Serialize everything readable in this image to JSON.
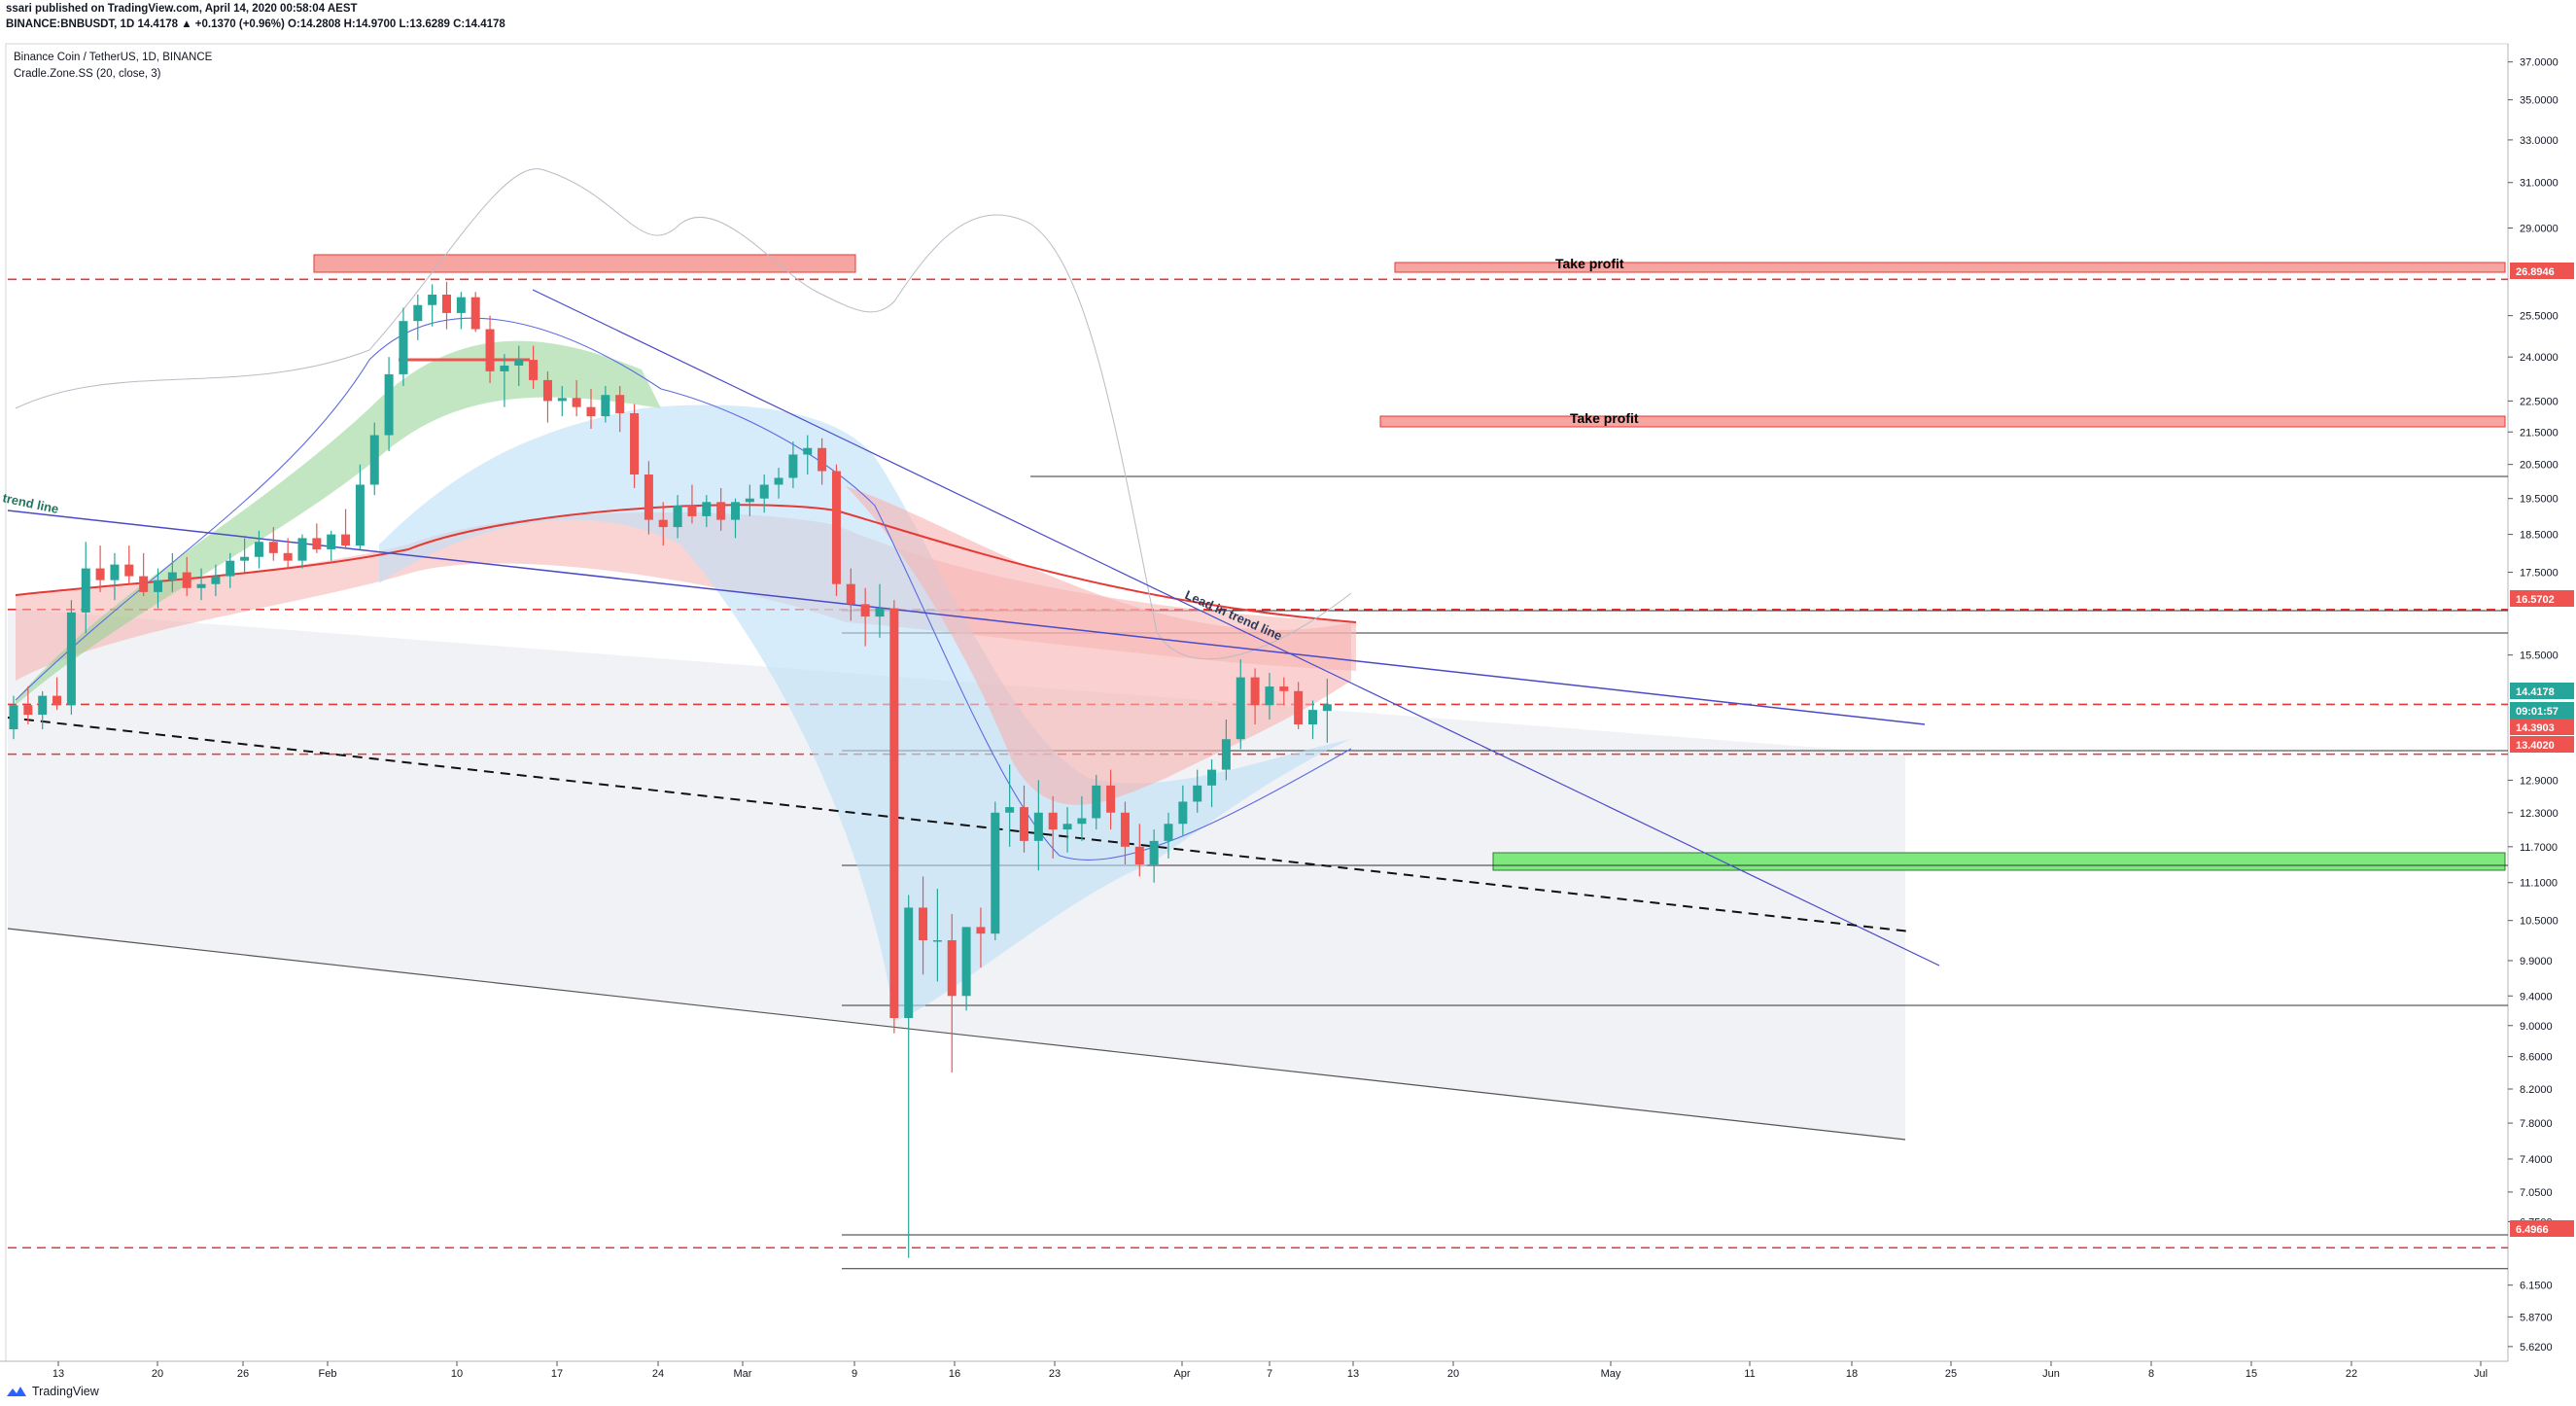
{
  "header": {
    "published_line": "ssari published on TradingView.com, April 14, 2020 00:58:04 AEST",
    "symbol_line": "BINANCE:BNBUSDT, 1D 14.4178 ▲ +0.1370 (+0.96%) O:14.2808 H:14.9700 L:13.6289 C:14.4178"
  },
  "legend": {
    "pair": "Binance Coin / TetherUS, 1D, BINANCE",
    "indicator": "Cradle.Zone.SS (20, close, 3)"
  },
  "footer": {
    "brand": "TradingView"
  },
  "colors": {
    "up": "#26a69a",
    "down": "#ef5350",
    "take_profit_fill": "#f7a5a1",
    "support_zone_fill": "#7ee87e",
    "trend_line": "#4a4ac8",
    "dashed_level": "#e53935"
  },
  "chart_data": {
    "type": "candlestick",
    "y_scale": "log",
    "y_tick_labels": [
      "37.0000",
      "35.0000",
      "33.0000",
      "31.0000",
      "29.0000",
      "25.5000",
      "24.0000",
      "22.5000",
      "21.5000",
      "20.5000",
      "19.5000",
      "18.5000",
      "17.5000",
      "15.5000",
      "12.9000",
      "12.3000",
      "11.7000",
      "11.1000",
      "10.5000",
      "9.9000",
      "9.4000",
      "9.0000",
      "8.6000",
      "8.2000",
      "7.8000",
      "7.4000",
      "7.0500",
      "6.7500",
      "6.1500",
      "5.8700",
      "5.6200"
    ],
    "x_tick_labels": [
      "13",
      "20",
      "26",
      "Feb",
      "10",
      "17",
      "24",
      "Mar",
      "9",
      "16",
      "23",
      "Apr",
      "7",
      "13",
      "20",
      "May",
      "11",
      "18",
      "25",
      "Jun",
      "8",
      "15",
      "22",
      "Jul"
    ],
    "price_labels": [
      {
        "text": "26.8946",
        "color": "#ef5350"
      },
      {
        "text": "16.5702",
        "color": "#ef5350"
      },
      {
        "text": "14.4178",
        "color": "#26a69a"
      },
      {
        "text": "09:01:57",
        "color": "#26a69a"
      },
      {
        "text": "14.3903",
        "color": "#ef5350"
      },
      {
        "text": "13.4020",
        "color": "#ef5350"
      },
      {
        "text": "6.4966",
        "color": "#ef5350"
      }
    ],
    "annotations": [
      {
        "text": "Take profit"
      },
      {
        "text": "Take profit"
      },
      {
        "text": "Lead in trend line"
      },
      {
        "text": "trend line"
      }
    ],
    "candles_ohlc": [
      [
        13.9,
        14.6,
        13.7,
        14.4
      ],
      [
        14.4,
        14.8,
        14.0,
        14.2
      ],
      [
        14.2,
        14.7,
        13.9,
        14.6
      ],
      [
        14.6,
        15.0,
        14.3,
        14.4
      ],
      [
        14.4,
        16.8,
        14.2,
        16.5
      ],
      [
        16.5,
        18.3,
        16.0,
        17.6
      ],
      [
        17.6,
        18.2,
        17.0,
        17.3
      ],
      [
        17.3,
        18.0,
        16.8,
        17.7
      ],
      [
        17.7,
        18.2,
        17.2,
        17.4
      ],
      [
        17.4,
        18.0,
        16.9,
        17.0
      ],
      [
        17.0,
        17.6,
        16.6,
        17.3
      ],
      [
        17.3,
        18.0,
        17.0,
        17.5
      ],
      [
        17.5,
        17.9,
        16.9,
        17.1
      ],
      [
        17.1,
        17.6,
        16.8,
        17.2
      ],
      [
        17.2,
        17.7,
        16.9,
        17.4
      ],
      [
        17.4,
        18.0,
        17.1,
        17.8
      ],
      [
        17.8,
        18.4,
        17.5,
        17.9
      ],
      [
        17.9,
        18.6,
        17.6,
        18.3
      ],
      [
        18.3,
        18.7,
        17.8,
        18.0
      ],
      [
        18.0,
        18.4,
        17.6,
        17.8
      ],
      [
        17.8,
        18.5,
        17.6,
        18.4
      ],
      [
        18.4,
        18.8,
        18.0,
        18.1
      ],
      [
        18.1,
        18.6,
        17.8,
        18.5
      ],
      [
        18.5,
        19.2,
        18.1,
        18.2
      ],
      [
        18.2,
        20.5,
        18.1,
        19.9
      ],
      [
        19.9,
        21.8,
        19.6,
        21.4
      ],
      [
        21.4,
        24.0,
        20.9,
        23.4
      ],
      [
        23.4,
        25.8,
        23.0,
        25.3
      ],
      [
        25.3,
        26.3,
        24.6,
        25.9
      ],
      [
        25.9,
        26.7,
        25.1,
        26.3
      ],
      [
        26.3,
        26.8,
        25.0,
        25.6
      ],
      [
        25.6,
        26.4,
        25.0,
        26.2
      ],
      [
        26.2,
        26.4,
        24.9,
        25.0
      ],
      [
        25.0,
        25.5,
        23.1,
        23.5
      ],
      [
        23.5,
        24.1,
        22.3,
        23.7
      ],
      [
        23.7,
        24.4,
        23.0,
        23.9
      ],
      [
        23.9,
        24.4,
        22.9,
        23.2
      ],
      [
        23.2,
        23.5,
        21.8,
        22.5
      ],
      [
        22.5,
        23.0,
        22.0,
        22.6
      ],
      [
        22.6,
        23.2,
        22.0,
        22.3
      ],
      [
        22.3,
        22.9,
        21.6,
        22.0
      ],
      [
        22.0,
        23.0,
        21.8,
        22.7
      ],
      [
        22.7,
        23.0,
        21.5,
        22.1
      ],
      [
        22.1,
        22.4,
        19.8,
        20.2
      ],
      [
        20.2,
        20.6,
        18.5,
        18.9
      ],
      [
        18.9,
        19.4,
        18.2,
        18.7
      ],
      [
        18.7,
        19.6,
        18.4,
        19.3
      ],
      [
        19.3,
        19.9,
        18.8,
        19.0
      ],
      [
        19.0,
        19.6,
        18.7,
        19.4
      ],
      [
        19.4,
        19.8,
        18.6,
        18.9
      ],
      [
        18.9,
        19.5,
        18.4,
        19.4
      ],
      [
        19.4,
        19.9,
        19.0,
        19.5
      ],
      [
        19.5,
        20.2,
        19.1,
        19.9
      ],
      [
        19.9,
        20.4,
        19.5,
        20.1
      ],
      [
        20.1,
        21.2,
        19.8,
        20.8
      ],
      [
        20.8,
        21.4,
        20.2,
        21.0
      ],
      [
        21.0,
        21.3,
        19.9,
        20.3
      ],
      [
        20.3,
        20.5,
        16.9,
        17.2
      ],
      [
        17.2,
        17.6,
        16.3,
        16.7
      ],
      [
        16.7,
        17.1,
        15.7,
        16.4
      ],
      [
        16.4,
        17.2,
        15.9,
        16.6
      ],
      [
        16.6,
        16.8,
        8.9,
        9.1
      ],
      [
        9.1,
        10.9,
        6.4,
        10.7
      ],
      [
        10.7,
        11.2,
        9.7,
        10.2
      ],
      [
        10.2,
        11.0,
        9.6,
        10.2
      ],
      [
        10.2,
        10.6,
        8.4,
        9.4
      ],
      [
        9.4,
        10.4,
        9.2,
        10.4
      ],
      [
        10.4,
        10.7,
        9.8,
        10.3
      ],
      [
        10.3,
        12.5,
        10.2,
        12.3
      ],
      [
        12.3,
        13.2,
        11.7,
        12.4
      ],
      [
        12.4,
        12.8,
        11.6,
        11.8
      ],
      [
        11.8,
        12.9,
        11.3,
        12.3
      ],
      [
        12.3,
        12.6,
        11.5,
        12.0
      ],
      [
        12.0,
        12.4,
        11.6,
        12.1
      ],
      [
        12.1,
        12.6,
        11.8,
        12.2
      ],
      [
        12.2,
        13.0,
        12.0,
        12.8
      ],
      [
        12.8,
        13.1,
        12.0,
        12.3
      ],
      [
        12.3,
        12.5,
        11.4,
        11.7
      ],
      [
        11.7,
        12.1,
        11.2,
        11.4
      ],
      [
        11.4,
        12.0,
        11.1,
        11.8
      ],
      [
        11.8,
        12.3,
        11.5,
        12.1
      ],
      [
        12.1,
        12.8,
        11.9,
        12.5
      ],
      [
        12.5,
        13.1,
        12.3,
        12.8
      ],
      [
        12.8,
        13.3,
        12.4,
        13.1
      ],
      [
        13.1,
        14.1,
        12.9,
        13.7
      ],
      [
        13.7,
        15.4,
        13.5,
        15.0
      ],
      [
        15.0,
        15.2,
        14.0,
        14.4
      ],
      [
        14.4,
        15.1,
        14.1,
        14.8
      ],
      [
        14.8,
        15.0,
        14.4,
        14.7
      ],
      [
        14.7,
        14.9,
        13.9,
        14.0
      ],
      [
        14.0,
        14.5,
        13.7,
        14.3
      ],
      [
        14.28,
        14.97,
        13.63,
        14.42
      ]
    ]
  }
}
